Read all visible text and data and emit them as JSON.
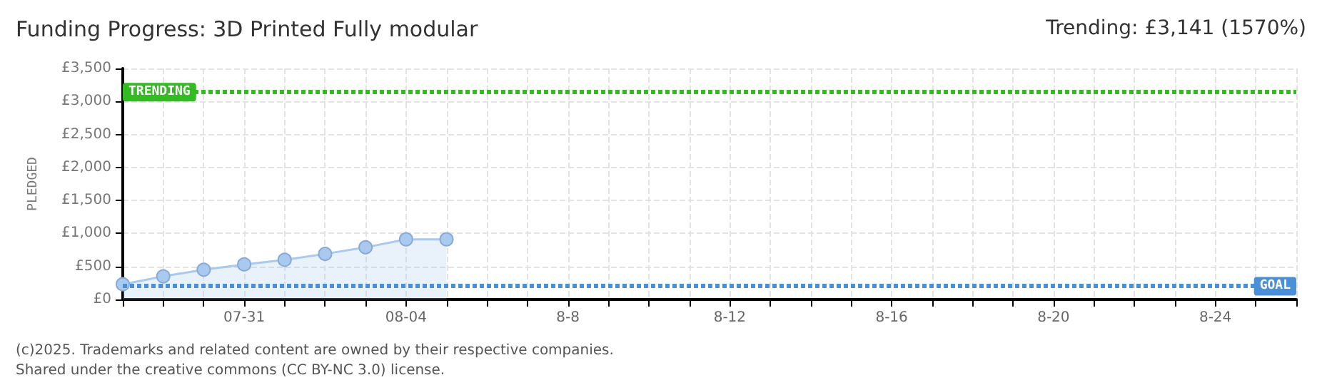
{
  "chart_data": {
    "type": "area",
    "title": "Funding Progress: 3D Printed Fully modular",
    "subtitle": "Trending: £3,141 (1570%)",
    "ylabel": "PLEDGED",
    "x": [
      "--07-28",
      "--07-29",
      "--07-30",
      "--07-31",
      "--08-01",
      "--08-02",
      "--08-03",
      "--08-04",
      "--08-05"
    ],
    "series": [
      {
        "color": "#a9c9ef",
        "values": [
          230,
          350,
          450,
          530,
          600,
          690,
          790,
          910,
          910
        ]
      }
    ],
    "marker": "circle",
    "grid": true,
    "ylim": [
      0,
      3500
    ],
    "yticks": [
      {
        "value": 0,
        "label": "£0"
      },
      {
        "value": 500,
        "label": "£500"
      },
      {
        "value": 1000,
        "label": "£1,000"
      },
      {
        "value": 1500,
        "label": "£1,500"
      },
      {
        "value": 2000,
        "label": "£2,000"
      },
      {
        "value": 2500,
        "label": "£2,500"
      },
      {
        "value": 3000,
        "label": "£3,000"
      },
      {
        "value": 3500,
        "label": "£3,500"
      }
    ],
    "xlim": [
      "--07-28",
      "--08-26"
    ],
    "xticks": [
      {
        "value": "--07-28",
        "label": null
      },
      {
        "value": "--07-29",
        "label": null
      },
      {
        "value": "--07-30",
        "label": null
      },
      {
        "value": "--07-31",
        "label": "07-31"
      },
      {
        "value": "--08-01",
        "label": null
      },
      {
        "value": "--08-02",
        "label": null
      },
      {
        "value": "--08-03",
        "label": null
      },
      {
        "value": "--08-04",
        "label": "08-04"
      },
      {
        "value": "--08-05",
        "label": null
      },
      {
        "value": "--08-06",
        "label": null
      },
      {
        "value": "--08-07",
        "label": null
      },
      {
        "value": "--08-08",
        "label": "8-8"
      },
      {
        "value": "--08-09",
        "label": null
      },
      {
        "value": "--08-10",
        "label": null
      },
      {
        "value": "--08-11",
        "label": null
      },
      {
        "value": "--08-12",
        "label": "8-12"
      },
      {
        "value": "--08-13",
        "label": null
      },
      {
        "value": "--08-14",
        "label": null
      },
      {
        "value": "--08-15",
        "label": null
      },
      {
        "value": "--08-16",
        "label": "8-16"
      },
      {
        "value": "--08-17",
        "label": null
      },
      {
        "value": "--08-18",
        "label": null
      },
      {
        "value": "--08-19",
        "label": null
      },
      {
        "value": "--08-20",
        "label": "8-20"
      },
      {
        "value": "--08-21",
        "label": null
      },
      {
        "value": "--08-22",
        "label": null
      },
      {
        "value": "--08-23",
        "label": null
      },
      {
        "value": "--08-24",
        "label": "8-24"
      },
      {
        "value": "--08-25",
        "label": null
      },
      {
        "value": "--08-26",
        "label": null
      }
    ],
    "ref_lines": [
      {
        "axis": "y",
        "value": 3141,
        "label": "TRENDING",
        "color": "#33bb22",
        "line_style": "dotted"
      },
      {
        "axis": "y",
        "value": 200,
        "label": "GOAL",
        "color": "#4a90d9",
        "line_style": "dotted"
      }
    ],
    "annotations": [
      "(c)2025. Trademarks and related content are owned by their respective companies.",
      "Shared under the creative commons (CC BY-NC 3.0) license."
    ]
  }
}
